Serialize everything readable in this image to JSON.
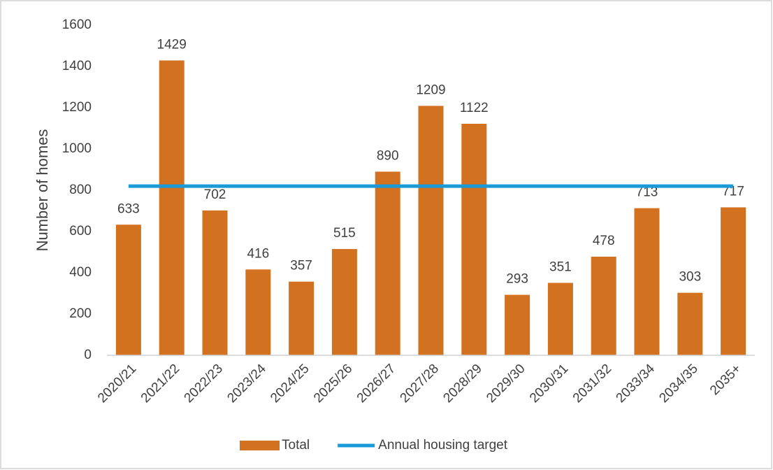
{
  "chart_data": {
    "type": "bar",
    "y_label": "Number of homes",
    "categories": [
      "2020/21",
      "2021/22",
      "2022/23",
      "2023/24",
      "2024/25",
      "2025/26",
      "2026/27",
      "2027/28",
      "2028/29",
      "2029/30",
      "2030/31",
      "2031/32",
      "2033/34",
      "2034/35",
      "2035+"
    ],
    "series": [
      {
        "name": "Total",
        "type": "bar",
        "color": "#d2711f",
        "values": [
          633,
          1429,
          702,
          416,
          357,
          515,
          890,
          1209,
          1122,
          293,
          351,
          478,
          713,
          303,
          717
        ],
        "data_labels": true
      },
      {
        "name": "Annual housing target",
        "type": "line",
        "color": "#1a9bd7",
        "values": [
          820,
          820,
          820,
          820,
          820,
          820,
          820,
          820,
          820,
          820,
          820,
          820,
          820,
          820,
          820
        ]
      }
    ],
    "ylim": [
      0,
      1600
    ],
    "yticks": [
      0,
      200,
      400,
      600,
      800,
      1000,
      1200,
      1400,
      1600
    ],
    "grid": false,
    "legend": "bottom"
  }
}
